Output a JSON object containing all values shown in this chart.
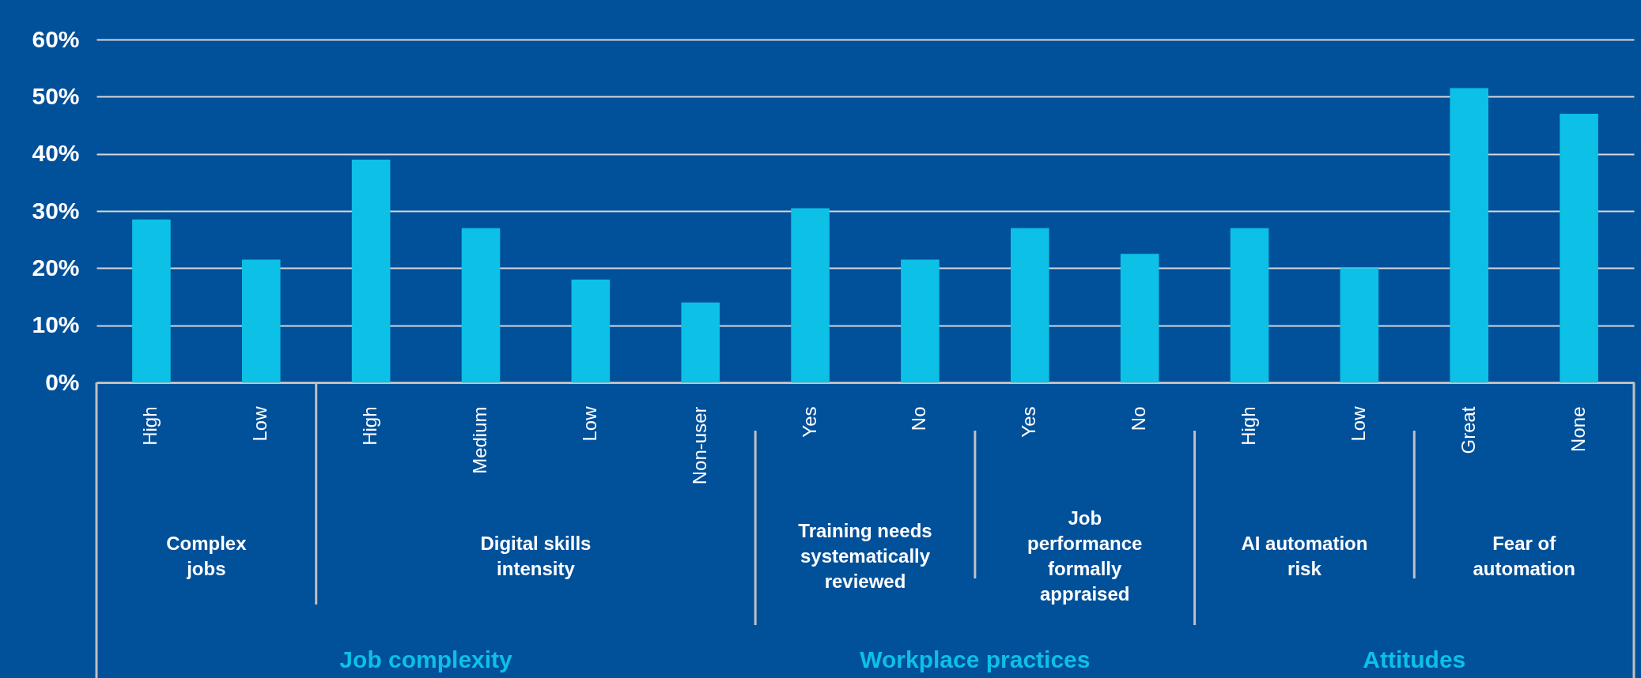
{
  "chart_data": {
    "type": "bar",
    "categories": [
      "High",
      "Low",
      "High",
      "Medium",
      "Low",
      "Non-user",
      "Yes",
      "No",
      "Yes",
      "No",
      "High",
      "Low",
      "Great",
      "None"
    ],
    "values": [
      28.5,
      21.5,
      39,
      27,
      18,
      14,
      30.5,
      21.5,
      27,
      22.5,
      27,
      20,
      51.5,
      47
    ],
    "color": "#0dc0e6",
    "ylim": [
      0,
      60
    ],
    "yticks": [
      {
        "value": 0,
        "label": "0%"
      },
      {
        "value": 10,
        "label": "10%"
      },
      {
        "value": 20,
        "label": "20%"
      },
      {
        "value": 30,
        "label": "30%"
      },
      {
        "value": 40,
        "label": "40%"
      },
      {
        "value": 50,
        "label": "50%"
      },
      {
        "value": 60,
        "label": "60%"
      }
    ],
    "grid": "y",
    "annotations": [
      "Complex\njobs",
      "Digital skills\nintensity",
      "Training needs\nsystematically\nreviewed",
      "Job\nperformance\nformally\nappraised",
      "AI automation\nrisk",
      "Fear of\nautomation",
      "Job complexity",
      "Workplace practices",
      "Attitudes"
    ]
  }
}
